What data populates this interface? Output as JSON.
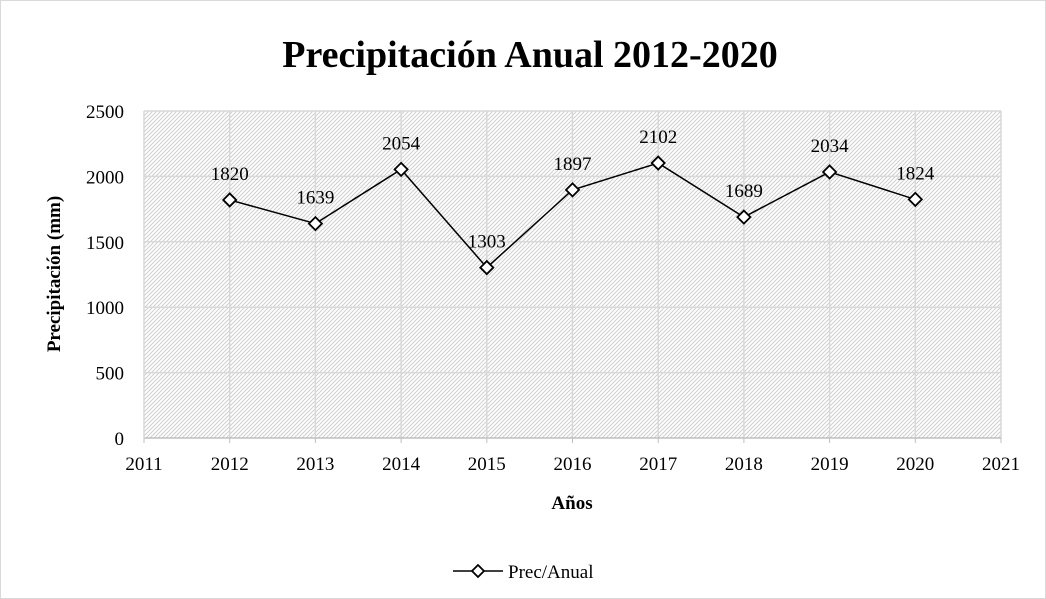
{
  "chart_data": {
    "type": "line",
    "title": "Precipitación Anual 2012-2020",
    "xlabel": "Años",
    "ylabel": "Precipitación (mm)",
    "xlim": [
      2011,
      2021
    ],
    "ylim": [
      0,
      2500
    ],
    "x_ticks": [
      "2011",
      "2012",
      "2013",
      "2014",
      "2015",
      "2016",
      "2017",
      "2018",
      "2019",
      "2020",
      "2021"
    ],
    "y_ticks": [
      "0",
      "500",
      "1000",
      "1500",
      "2000",
      "2500"
    ],
    "grid": true,
    "legend_position": "bottom",
    "series": [
      {
        "name": "Prec/Anual",
        "color": "#000000",
        "marker": "diamond",
        "x": [
          2012,
          2013,
          2014,
          2015,
          2016,
          2017,
          2018,
          2019,
          2020
        ],
        "y": [
          1820,
          1639,
          2054,
          1303,
          1897,
          2102,
          1689,
          2034,
          1824
        ],
        "labels": [
          "1820",
          "1639",
          "2054",
          "1303",
          "1897",
          "2102",
          "1689",
          "2034",
          "1824"
        ]
      }
    ]
  }
}
